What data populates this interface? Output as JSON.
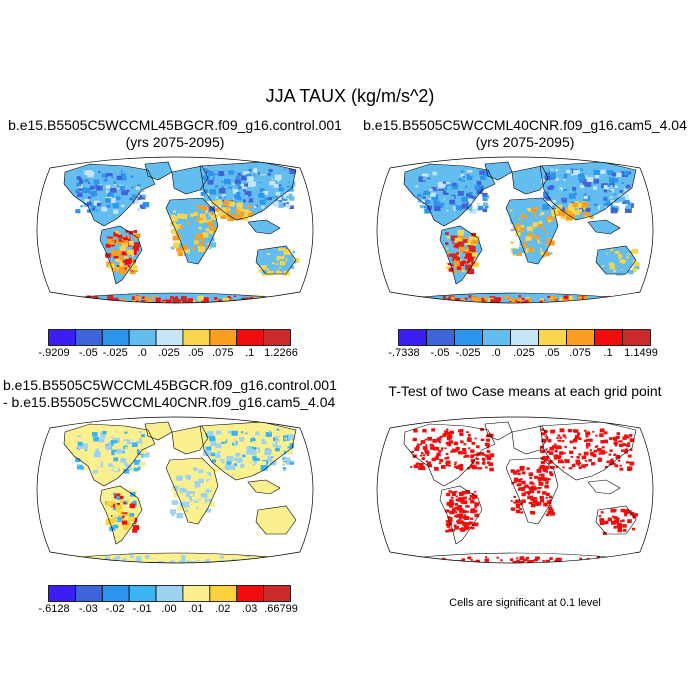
{
  "title": "JJA TAUX (kg/m/s^2)",
  "panels": [
    {
      "id": "p1",
      "title_lines": [
        "b.e15.B5505C5WCCML45BGCR.f09_g16.control.001",
        "(yrs 2075-2095)"
      ],
      "colorbar": {
        "colors": [
          "#3a1ef2",
          "#3f63d8",
          "#2e95ee",
          "#63bdee",
          "#c6e6f6",
          "#f8d74f",
          "#fb9e21",
          "#f10d0d",
          "#cb2a2a"
        ],
        "labels": [
          "-.9209",
          "-.05",
          "-.025",
          ".0",
          ".025",
          ".05",
          ".075",
          ".1",
          "1.2266"
        ]
      }
    },
    {
      "id": "p2",
      "title_lines": [
        "b.e15.B5505C5WCCML40CNR.f09_g16.cam5_4.04",
        "(yrs 2075-2095)"
      ],
      "colorbar": {
        "colors": [
          "#3a1ef2",
          "#3f63d8",
          "#2e95ee",
          "#63bdee",
          "#c6e6f6",
          "#f8d74f",
          "#fb9e21",
          "#f10d0d",
          "#cb2a2a"
        ],
        "labels": [
          "-.7338",
          "-.05",
          "-.025",
          ".0",
          ".025",
          ".05",
          ".075",
          ".1",
          "1.1499"
        ]
      }
    },
    {
      "id": "p3",
      "title_lines": [
        "b.e15.B5505C5WCCML45BGCR.f09_g16.control.001",
        "- b.e15.B5505C5WCCML40CNR.f09_g16.cam5_4.04"
      ],
      "colorbar": {
        "colors": [
          "#3a1ef2",
          "#3f63d8",
          "#2e95ee",
          "#3cb4f2",
          "#9dd2f0",
          "#fbf08f",
          "#fbd23c",
          "#f10d0d",
          "#cb2a2a"
        ],
        "labels": [
          "-.6128",
          "-.03",
          "-.02",
          "-.01",
          ".00",
          ".01",
          ".02",
          ".03",
          ".66799"
        ]
      }
    },
    {
      "id": "p4",
      "title_lines": [
        "T-Test of two Case means at each grid point"
      ],
      "note": "Cells are significant at 0.1 level"
    }
  ]
}
